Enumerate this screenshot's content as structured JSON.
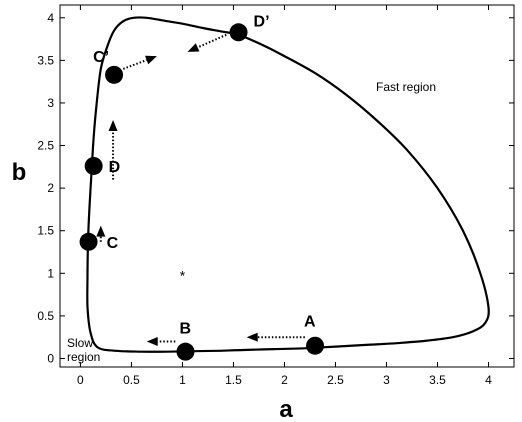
{
  "chart_data": {
    "type": "line",
    "title": "",
    "xlabel": "a",
    "ylabel": "b",
    "xlim": [
      -0.2,
      4.25
    ],
    "ylim": [
      -0.1,
      4.15
    ],
    "xticks": [
      0,
      0.5,
      1,
      1.5,
      2,
      2.5,
      3,
      3.5,
      4
    ],
    "xtick_labels": [
      "0",
      "0.5",
      "1",
      "1.5",
      "2",
      "2.5",
      "3",
      "3.5",
      "4"
    ],
    "yticks": [
      0,
      0.5,
      1,
      1.5,
      2,
      2.5,
      3,
      3.5,
      4
    ],
    "ytick_labels": [
      "0",
      "0.5",
      "1",
      "1.5",
      "2",
      "2.5",
      "3",
      "3.5",
      "4"
    ],
    "grid": false,
    "series": [
      {
        "x": [
          0.07,
          0.075,
          0.09,
          0.11,
          0.13,
          0.16,
          0.2,
          0.26,
          0.33,
          0.42,
          0.52,
          0.65,
          0.8,
          1.0,
          1.2,
          1.38,
          1.55,
          1.75,
          2.0,
          2.3,
          2.6,
          2.9,
          3.2,
          3.5,
          3.75,
          3.92,
          4.0,
          3.97,
          3.85,
          3.65,
          3.4,
          3.1,
          2.8,
          2.5,
          2.2,
          1.9,
          1.6,
          1.35,
          1.1,
          0.85,
          0.6,
          0.35,
          0.17,
          0.1,
          0.07
        ],
        "y": [
          1.0,
          1.4,
          1.8,
          2.2,
          2.6,
          3.0,
          3.4,
          3.65,
          3.85,
          3.96,
          4.0,
          4.0,
          3.97,
          3.93,
          3.88,
          3.84,
          3.8,
          3.7,
          3.55,
          3.35,
          3.1,
          2.8,
          2.45,
          2.0,
          1.5,
          1.0,
          0.6,
          0.42,
          0.32,
          0.25,
          0.21,
          0.18,
          0.16,
          0.14,
          0.12,
          0.11,
          0.1,
          0.09,
          0.085,
          0.08,
          0.08,
          0.09,
          0.13,
          0.3,
          0.6
        ]
      }
    ],
    "points": [
      {
        "label": "A",
        "x": 2.3,
        "y": 0.15
      },
      {
        "label": "B",
        "x": 1.03,
        "y": 0.08
      },
      {
        "label": "C",
        "x": 0.08,
        "y": 1.37
      },
      {
        "label": "D",
        "x": 0.13,
        "y": 2.26
      },
      {
        "label": "C’",
        "x": 0.33,
        "y": 3.33
      },
      {
        "label": "D’",
        "x": 1.55,
        "y": 3.83
      }
    ],
    "arrows": [
      {
        "x1": 2.2,
        "y1": 0.25,
        "x2": 1.63,
        "y2": 0.25
      },
      {
        "x1": 0.93,
        "y1": 0.2,
        "x2": 0.65,
        "y2": 0.2
      },
      {
        "x1": 0.2,
        "y1": 1.37,
        "x2": 0.2,
        "y2": 1.56
      },
      {
        "x1": 0.32,
        "y1": 2.1,
        "x2": 0.32,
        "y2": 2.8
      },
      {
        "x1": 0.42,
        "y1": 3.4,
        "x2": 0.75,
        "y2": 3.55
      },
      {
        "x1": 1.43,
        "y1": 3.8,
        "x2": 1.05,
        "y2": 3.6
      }
    ],
    "equilibrium": {
      "x": 1.0,
      "y": 1.0,
      "marker": "*"
    },
    "annotations": {
      "fast_region": "Fast region",
      "slow_region_line1": "Slow",
      "slow_region_line2": "region"
    }
  }
}
